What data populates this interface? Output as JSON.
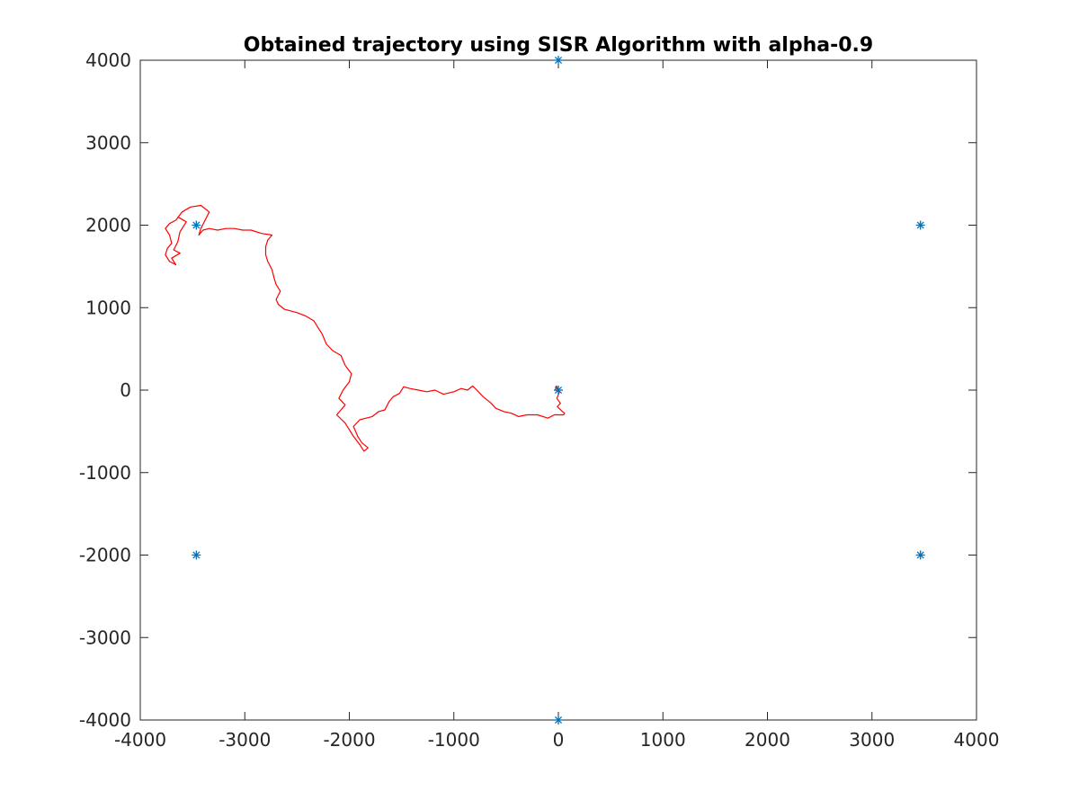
{
  "chart_data": {
    "type": "line",
    "title": "Obtained trajectory using SISR Algorithm with alpha-0.9",
    "xlabel": "",
    "ylabel": "",
    "xlim": [
      -4000,
      4000
    ],
    "ylim": [
      -4000,
      4000
    ],
    "xticks": [
      -4000,
      -3000,
      -2000,
      -1000,
      0,
      1000,
      2000,
      3000,
      4000
    ],
    "yticks": [
      -4000,
      -3000,
      -2000,
      -1000,
      0,
      1000,
      2000,
      3000,
      4000
    ],
    "xtick_labels": [
      "-4000",
      "-3000",
      "-2000",
      "-1000",
      "0",
      "1000",
      "2000",
      "3000",
      "4000"
    ],
    "ytick_labels": [
      "-4000",
      "-3000",
      "-2000",
      "-1000",
      "0",
      "1000",
      "2000",
      "3000",
      "4000"
    ],
    "grid": false,
    "series": [
      {
        "type": "scatter",
        "marker": "asterisk",
        "color": "#0072BD",
        "points": [
          {
            "x": 0,
            "y": 4000
          },
          {
            "x": -3464,
            "y": 2000
          },
          {
            "x": 3464,
            "y": 2000
          },
          {
            "x": 0,
            "y": 0
          },
          {
            "x": -3464,
            "y": -2000
          },
          {
            "x": 3464,
            "y": -2000
          },
          {
            "x": 0,
            "y": -4000
          }
        ]
      },
      {
        "type": "line",
        "color": "#FF0000",
        "points": [
          {
            "x": 0,
            "y": 0
          },
          {
            "x": -20,
            "y": 50
          },
          {
            "x": -30,
            "y": 0
          },
          {
            "x": 10,
            "y": -20
          },
          {
            "x": -15,
            "y": -100
          },
          {
            "x": 20,
            "y": -160
          },
          {
            "x": -10,
            "y": -200
          },
          {
            "x": 40,
            "y": -260
          },
          {
            "x": 60,
            "y": -280
          },
          {
            "x": 50,
            "y": -300
          },
          {
            "x": -40,
            "y": -300
          },
          {
            "x": -100,
            "y": -340
          },
          {
            "x": -200,
            "y": -300
          },
          {
            "x": -300,
            "y": -300
          },
          {
            "x": -380,
            "y": -320
          },
          {
            "x": -450,
            "y": -280
          },
          {
            "x": -520,
            "y": -260
          },
          {
            "x": -600,
            "y": -220
          },
          {
            "x": -650,
            "y": -150
          },
          {
            "x": -720,
            "y": -80
          },
          {
            "x": -780,
            "y": 0
          },
          {
            "x": -820,
            "y": 50
          },
          {
            "x": -870,
            "y": 0
          },
          {
            "x": -930,
            "y": 20
          },
          {
            "x": -1000,
            "y": -20
          },
          {
            "x": -1100,
            "y": -50
          },
          {
            "x": -1180,
            "y": 0
          },
          {
            "x": -1260,
            "y": -20
          },
          {
            "x": -1340,
            "y": 0
          },
          {
            "x": -1420,
            "y": 20
          },
          {
            "x": -1480,
            "y": 40
          },
          {
            "x": -1520,
            "y": -40
          },
          {
            "x": -1580,
            "y": -80
          },
          {
            "x": -1620,
            "y": -140
          },
          {
            "x": -1660,
            "y": -240
          },
          {
            "x": -1720,
            "y": -260
          },
          {
            "x": -1780,
            "y": -320
          },
          {
            "x": -1840,
            "y": -340
          },
          {
            "x": -1900,
            "y": -360
          },
          {
            "x": -1960,
            "y": -440
          },
          {
            "x": -1920,
            "y": -560
          },
          {
            "x": -1880,
            "y": -640
          },
          {
            "x": -1820,
            "y": -700
          },
          {
            "x": -1860,
            "y": -740
          },
          {
            "x": -1900,
            "y": -660
          },
          {
            "x": -1960,
            "y": -560
          },
          {
            "x": -2040,
            "y": -400
          },
          {
            "x": -2120,
            "y": -300
          },
          {
            "x": -2080,
            "y": -240
          },
          {
            "x": -2040,
            "y": -180
          },
          {
            "x": -2100,
            "y": -100
          },
          {
            "x": -2060,
            "y": 0
          },
          {
            "x": -2000,
            "y": 100
          },
          {
            "x": -1980,
            "y": 200
          },
          {
            "x": -2040,
            "y": 300
          },
          {
            "x": -2080,
            "y": 420
          },
          {
            "x": -2160,
            "y": 480
          },
          {
            "x": -2220,
            "y": 560
          },
          {
            "x": -2260,
            "y": 680
          },
          {
            "x": -2300,
            "y": 760
          },
          {
            "x": -2340,
            "y": 840
          },
          {
            "x": -2420,
            "y": 900
          },
          {
            "x": -2500,
            "y": 940
          },
          {
            "x": -2560,
            "y": 960
          },
          {
            "x": -2620,
            "y": 980
          },
          {
            "x": -2680,
            "y": 1040
          },
          {
            "x": -2700,
            "y": 1100
          },
          {
            "x": -2660,
            "y": 1200
          },
          {
            "x": -2700,
            "y": 1280
          },
          {
            "x": -2720,
            "y": 1360
          },
          {
            "x": -2740,
            "y": 1460
          },
          {
            "x": -2780,
            "y": 1560
          },
          {
            "x": -2800,
            "y": 1640
          },
          {
            "x": -2800,
            "y": 1740
          },
          {
            "x": -2780,
            "y": 1820
          },
          {
            "x": -2740,
            "y": 1880
          },
          {
            "x": -2840,
            "y": 1900
          },
          {
            "x": -2940,
            "y": 1940
          },
          {
            "x": -3020,
            "y": 1940
          },
          {
            "x": -3100,
            "y": 1960
          },
          {
            "x": -3180,
            "y": 1960
          },
          {
            "x": -3260,
            "y": 1940
          },
          {
            "x": -3340,
            "y": 1960
          },
          {
            "x": -3400,
            "y": 1940
          },
          {
            "x": -3440,
            "y": 1880
          },
          {
            "x": -3420,
            "y": 1960
          },
          {
            "x": -3380,
            "y": 2060
          },
          {
            "x": -3340,
            "y": 2160
          },
          {
            "x": -3420,
            "y": 2240
          },
          {
            "x": -3520,
            "y": 2220
          },
          {
            "x": -3600,
            "y": 2160
          },
          {
            "x": -3660,
            "y": 2060
          },
          {
            "x": -3720,
            "y": 2020
          },
          {
            "x": -3760,
            "y": 1960
          },
          {
            "x": -3720,
            "y": 1880
          },
          {
            "x": -3700,
            "y": 1780
          },
          {
            "x": -3740,
            "y": 1720
          },
          {
            "x": -3760,
            "y": 1640
          },
          {
            "x": -3720,
            "y": 1560
          },
          {
            "x": -3660,
            "y": 1520
          },
          {
            "x": -3700,
            "y": 1600
          },
          {
            "x": -3620,
            "y": 1660
          },
          {
            "x": -3680,
            "y": 1700
          },
          {
            "x": -3640,
            "y": 1800
          },
          {
            "x": -3620,
            "y": 1920
          },
          {
            "x": -3560,
            "y": 2040
          },
          {
            "x": -3640,
            "y": 2100
          }
        ]
      }
    ]
  }
}
